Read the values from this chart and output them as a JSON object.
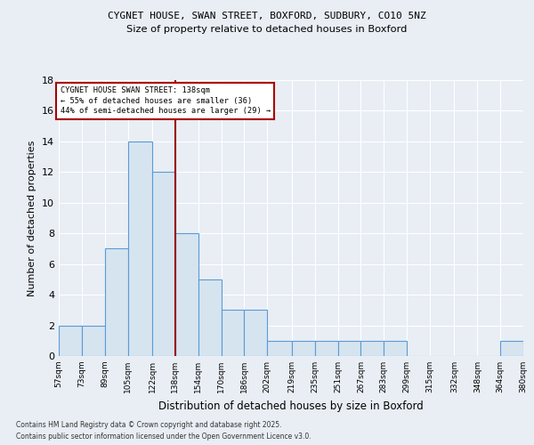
{
  "title1": "CYGNET HOUSE, SWAN STREET, BOXFORD, SUDBURY, CO10 5NZ",
  "title2": "Size of property relative to detached houses in Boxford",
  "xlabel": "Distribution of detached houses by size in Boxford",
  "ylabel": "Number of detached properties",
  "bin_edges": [
    57,
    73,
    89,
    105,
    122,
    138,
    154,
    170,
    186,
    202,
    219,
    235,
    251,
    267,
    283,
    299,
    315,
    332,
    348,
    364,
    380
  ],
  "bar_heights": [
    2,
    2,
    7,
    14,
    12,
    8,
    5,
    3,
    3,
    1,
    1,
    1,
    1,
    1,
    1,
    0,
    0,
    0,
    0,
    1
  ],
  "bar_color": "#d6e4f0",
  "bar_edgecolor": "#5b9bd5",
  "redline_x": 138,
  "ylim": [
    0,
    18
  ],
  "yticks": [
    0,
    2,
    4,
    6,
    8,
    10,
    12,
    14,
    16,
    18
  ],
  "annotation_text": "CYGNET HOUSE SWAN STREET: 138sqm\n← 55% of detached houses are smaller (36)\n44% of semi-detached houses are larger (29) →",
  "annotation_box_facecolor": "#ffffff",
  "annotation_box_edgecolor": "#aa0000",
  "footer1": "Contains HM Land Registry data © Crown copyright and database right 2025.",
  "footer2": "Contains public sector information licensed under the Open Government Licence v3.0.",
  "bg_color": "#e8eef4",
  "plot_bg_color": "#e8eef4",
  "grid_color": "#ffffff"
}
